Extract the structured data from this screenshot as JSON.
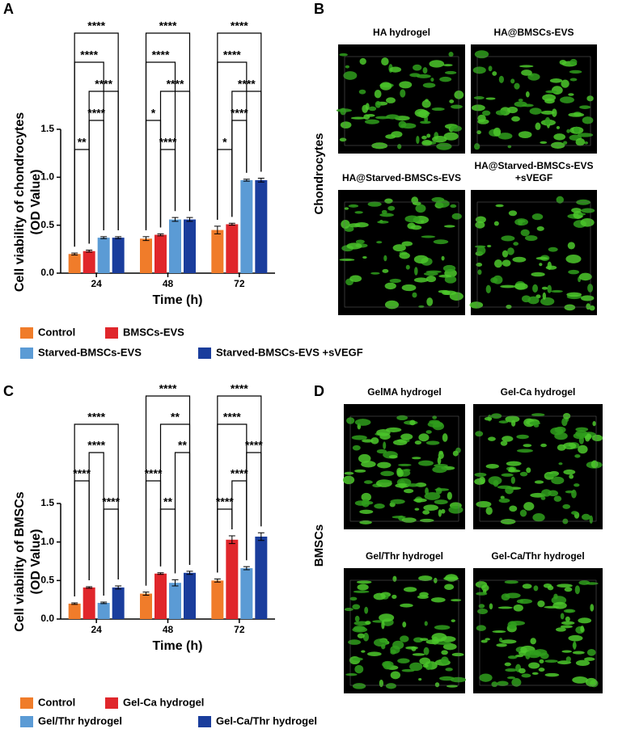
{
  "panel_labels": [
    "A",
    "B",
    "C",
    "D"
  ],
  "chart_data": [
    {
      "type": "bar",
      "ylabel": [
        "Cell viability of chondrocytes",
        "(OD Value)"
      ],
      "xlabel": "Time (h)",
      "categories": [
        "24",
        "48",
        "72"
      ],
      "ylim": [
        0,
        1.5
      ],
      "yticks": [
        {
          "value": 0,
          "label": "0.0"
        },
        0.5,
        {
          "value": 1,
          "label": "1.0"
        },
        1.5
      ],
      "series": [
        {
          "name": "Control",
          "color": "#f07c2a",
          "values": [
            0.2,
            0.36,
            0.45
          ],
          "errors": [
            0.01,
            0.02,
            0.04
          ]
        },
        {
          "name": "BMSCs-EVS",
          "color": "#e0262b",
          "values": [
            0.23,
            0.4,
            0.51
          ],
          "errors": [
            0.01,
            0.01,
            0.01
          ]
        },
        {
          "name": "Starved-BMSCs-EVS",
          "color": "#5b9bd5",
          "values": [
            0.37,
            0.56,
            0.97
          ],
          "errors": [
            0.01,
            0.02,
            0.01
          ]
        },
        {
          "name": "Starved-BMSCs-EVS +sVEGF",
          "color": "#1a3d9c",
          "values": [
            0.37,
            0.56,
            0.97
          ],
          "errors": [
            0.01,
            0.02,
            0.02
          ]
        }
      ],
      "brackets": [
        {
          "group": 0,
          "pair": [
            0,
            1
          ],
          "label": "**"
        },
        {
          "group": 0,
          "pair": [
            1,
            2
          ],
          "label": "****"
        },
        {
          "group": 0,
          "pair": [
            1,
            3
          ],
          "label": "****"
        },
        {
          "group": 0,
          "pair": [
            0,
            2
          ],
          "label": "****"
        },
        {
          "group": 0,
          "pair": [
            0,
            3
          ],
          "label": "****"
        },
        {
          "group": 1,
          "pair": [
            1,
            2
          ],
          "label": "****"
        },
        {
          "group": 1,
          "pair": [
            0,
            1
          ],
          "label": "*"
        },
        {
          "group": 1,
          "pair": [
            1,
            3
          ],
          "label": "****"
        },
        {
          "group": 1,
          "pair": [
            0,
            2
          ],
          "label": "****"
        },
        {
          "group": 1,
          "pair": [
            0,
            3
          ],
          "label": "****"
        },
        {
          "group": 2,
          "pair": [
            0,
            1
          ],
          "label": "*"
        },
        {
          "group": 2,
          "pair": [
            1,
            2
          ],
          "label": "****"
        },
        {
          "group": 2,
          "pair": [
            1,
            3
          ],
          "label": "****"
        },
        {
          "group": 2,
          "pair": [
            0,
            2
          ],
          "label": "****"
        },
        {
          "group": 2,
          "pair": [
            0,
            3
          ],
          "label": "****"
        }
      ]
    },
    {
      "type": "bar",
      "ylabel": [
        "Cell viability of BMSCs",
        "(OD Value)"
      ],
      "xlabel": "Time (h)",
      "categories": [
        "24",
        "48",
        "72"
      ],
      "ylim": [
        0,
        1.5
      ],
      "yticks": [
        {
          "value": 0,
          "label": "0.0"
        },
        0.5,
        {
          "value": 1,
          "label": "1.0"
        },
        1.5
      ],
      "series": [
        {
          "name": "Control",
          "color": "#f07c2a",
          "values": [
            0.2,
            0.33,
            0.5
          ],
          "errors": [
            0.01,
            0.02,
            0.02
          ]
        },
        {
          "name": "Gel-Ca hydrogel",
          "color": "#e0262b",
          "values": [
            0.41,
            0.59,
            1.03
          ],
          "errors": [
            0.01,
            0.01,
            0.05
          ]
        },
        {
          "name": "Gel/Thr hydrogel",
          "color": "#5b9bd5",
          "values": [
            0.21,
            0.47,
            0.66
          ],
          "errors": [
            0.01,
            0.04,
            0.02
          ]
        },
        {
          "name": "Gel-Ca/Thr hydrogel",
          "color": "#1a3d9c",
          "values": [
            0.41,
            0.6,
            1.07
          ],
          "errors": [
            0.02,
            0.02,
            0.05
          ]
        }
      ],
      "brackets": [
        {
          "group": 0,
          "pair": [
            2,
            3
          ],
          "label": "****"
        },
        {
          "group": 0,
          "pair": [
            0,
            1
          ],
          "label": "****"
        },
        {
          "group": 0,
          "pair": [
            1,
            2
          ],
          "label": "****"
        },
        {
          "group": 0,
          "pair": [
            0,
            3
          ],
          "label": "****"
        },
        {
          "group": 1,
          "pair": [
            1,
            2
          ],
          "label": "**"
        },
        {
          "group": 1,
          "pair": [
            0,
            1
          ],
          "label": "****"
        },
        {
          "group": 1,
          "pair": [
            2,
            3
          ],
          "label": "**"
        },
        {
          "group": 1,
          "pair": [
            1,
            3
          ],
          "label": "**"
        },
        {
          "group": 1,
          "pair": [
            0,
            3
          ],
          "label": "****"
        },
        {
          "group": 2,
          "pair": [
            0,
            1
          ],
          "label": "****"
        },
        {
          "group": 2,
          "pair": [
            1,
            2
          ],
          "label": "****"
        },
        {
          "group": 2,
          "pair": [
            2,
            3
          ],
          "label": "****"
        },
        {
          "group": 2,
          "pair": [
            0,
            2
          ],
          "label": "****"
        },
        {
          "group": 2,
          "pair": [
            0,
            3
          ],
          "label": "****"
        }
      ]
    }
  ],
  "image_panels": [
    {
      "row_label": "Chondrocytes",
      "images": [
        [
          "HA hydrogel"
        ],
        [
          "HA@BMSCs-EVS"
        ],
        [
          "HA@Starved-BMSCs-EVS"
        ],
        [
          "HA@Starved-BMSCs-EVS",
          "+sVEGF"
        ]
      ]
    },
    {
      "row_label": "BMSCs",
      "images": [
        [
          "GelMA hydrogel"
        ],
        [
          "Gel-Ca hydrogel"
        ],
        [
          "Gel/Thr hydrogel"
        ],
        [
          "Gel-Ca/Thr hydrogel"
        ]
      ]
    }
  ]
}
